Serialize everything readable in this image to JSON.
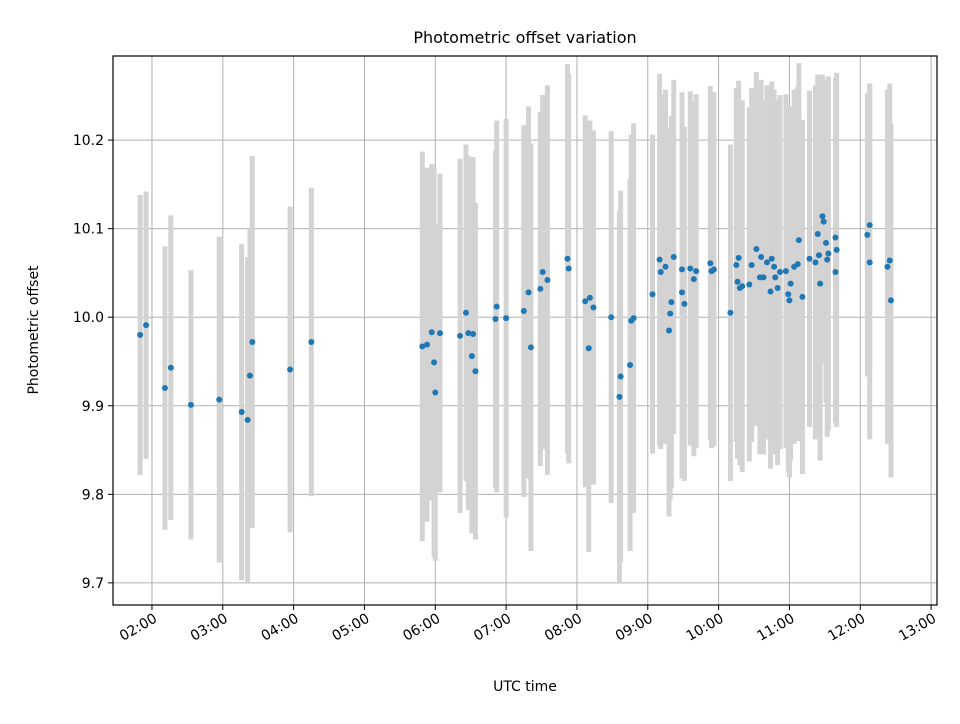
{
  "chart_data": {
    "type": "scatter",
    "title": "Photometric offset variation",
    "xlabel": "UTC time",
    "ylabel": "Photometric offset",
    "x_axis_kind": "time",
    "xlim": [
      "01:27",
      "13:05"
    ],
    "ylim": [
      9.675,
      10.295
    ],
    "grid": true,
    "x_ticks": [
      "02:00",
      "03:00",
      "04:00",
      "05:00",
      "06:00",
      "07:00",
      "08:00",
      "09:00",
      "10:00",
      "11:00",
      "12:00",
      "13:00"
    ],
    "y_ticks": [
      "9.7",
      "9.8",
      "9.9",
      "10.0",
      "10.1",
      "10.2"
    ],
    "colors": {
      "marker": "#1f77b4",
      "errorbar": "#d3d3d3",
      "grid": "#b0b0b0"
    },
    "series": [
      {
        "points": [
          {
            "x": "01:50",
            "y": 9.98,
            "err": 0.158
          },
          {
            "x": "01:55",
            "y": 9.991,
            "err": 0.151
          },
          {
            "x": "02:11",
            "y": 9.92,
            "err": 0.16
          },
          {
            "x": "02:16",
            "y": 9.943,
            "err": 0.172
          },
          {
            "x": "02:33",
            "y": 9.901,
            "err": 0.152
          },
          {
            "x": "02:57",
            "y": 9.907,
            "err": 0.184
          },
          {
            "x": "03:16",
            "y": 9.893,
            "err": 0.19
          },
          {
            "x": "03:21",
            "y": 9.884,
            "err": 0.184
          },
          {
            "x": "03:23",
            "y": 9.934,
            "err": 0.166
          },
          {
            "x": "03:25",
            "y": 9.972,
            "err": 0.21
          },
          {
            "x": "03:57",
            "y": 9.941,
            "err": 0.184
          },
          {
            "x": "04:15",
            "y": 9.972,
            "err": 0.174
          },
          {
            "x": "05:49",
            "y": 9.967,
            "err": 0.22
          },
          {
            "x": "05:53",
            "y": 9.969,
            "err": 0.2
          },
          {
            "x": "05:57",
            "y": 9.983,
            "err": 0.19
          },
          {
            "x": "05:59",
            "y": 9.949,
            "err": 0.22
          },
          {
            "x": "06:00",
            "y": 9.915,
            "err": 0.19
          },
          {
            "x": "06:04",
            "y": 9.982,
            "err": 0.18
          },
          {
            "x": "06:21",
            "y": 9.979,
            "err": 0.2
          },
          {
            "x": "06:26",
            "y": 10.005,
            "err": 0.19
          },
          {
            "x": "06:28",
            "y": 9.982,
            "err": 0.2
          },
          {
            "x": "06:32",
            "y": 9.981,
            "err": 0.2
          },
          {
            "x": "06:31",
            "y": 9.956,
            "err": 0.2
          },
          {
            "x": "06:34",
            "y": 9.939,
            "err": 0.19
          },
          {
            "x": "06:51",
            "y": 9.998,
            "err": 0.19
          },
          {
            "x": "06:52",
            "y": 10.012,
            "err": 0.21
          },
          {
            "x": "07:00",
            "y": 9.999,
            "err": 0.225
          },
          {
            "x": "07:15",
            "y": 10.007,
            "err": 0.21
          },
          {
            "x": "07:19",
            "y": 10.028,
            "err": 0.21
          },
          {
            "x": "07:21",
            "y": 9.966,
            "err": 0.23
          },
          {
            "x": "07:29",
            "y": 10.032,
            "err": 0.2
          },
          {
            "x": "07:31",
            "y": 10.051,
            "err": 0.2
          },
          {
            "x": "07:35",
            "y": 10.042,
            "err": 0.22
          },
          {
            "x": "07:52",
            "y": 10.066,
            "err": 0.22
          },
          {
            "x": "07:53",
            "y": 10.055,
            "err": 0.22
          },
          {
            "x": "08:07",
            "y": 10.018,
            "err": 0.21
          },
          {
            "x": "08:10",
            "y": 9.965,
            "err": 0.23
          },
          {
            "x": "08:11",
            "y": 10.022,
            "err": 0.2
          },
          {
            "x": "08:14",
            "y": 10.011,
            "err": 0.2
          },
          {
            "x": "08:29",
            "y": 10.0,
            "err": 0.21
          },
          {
            "x": "08:36",
            "y": 9.91,
            "err": 0.21
          },
          {
            "x": "08:37",
            "y": 9.933,
            "err": 0.21
          },
          {
            "x": "08:45",
            "y": 9.946,
            "err": 0.21
          },
          {
            "x": "08:46",
            "y": 9.996,
            "err": 0.21
          },
          {
            "x": "08:48",
            "y": 9.999,
            "err": 0.22
          },
          {
            "x": "09:04",
            "y": 10.026,
            "err": 0.18
          },
          {
            "x": "09:10",
            "y": 10.065,
            "err": 0.21
          },
          {
            "x": "09:11",
            "y": 10.051,
            "err": 0.2
          },
          {
            "x": "09:15",
            "y": 10.057,
            "err": 0.2
          },
          {
            "x": "09:18",
            "y": 9.985,
            "err": 0.21
          },
          {
            "x": "09:19",
            "y": 10.004,
            "err": 0.21
          },
          {
            "x": "09:20",
            "y": 10.017,
            "err": 0.21
          },
          {
            "x": "09:22",
            "y": 10.068,
            "err": 0.2
          },
          {
            "x": "09:29",
            "y": 10.054,
            "err": 0.2
          },
          {
            "x": "09:29",
            "y": 10.028,
            "err": 0.21
          },
          {
            "x": "09:31",
            "y": 10.015,
            "err": 0.2
          },
          {
            "x": "09:36",
            "y": 10.055,
            "err": 0.2
          },
          {
            "x": "09:39",
            "y": 10.043,
            "err": 0.2
          },
          {
            "x": "09:41",
            "y": 10.052,
            "err": 0.2
          },
          {
            "x": "09:53",
            "y": 10.061,
            "err": 0.2
          },
          {
            "x": "09:54",
            "y": 10.052,
            "err": 0.2
          },
          {
            "x": "09:56",
            "y": 10.054,
            "err": 0.2
          },
          {
            "x": "10:10",
            "y": 10.005,
            "err": 0.19
          },
          {
            "x": "10:15",
            "y": 10.059,
            "err": 0.2
          },
          {
            "x": "10:17",
            "y": 10.067,
            "err": 0.2
          },
          {
            "x": "10:16",
            "y": 10.04,
            "err": 0.2
          },
          {
            "x": "10:18",
            "y": 10.033,
            "err": 0.2
          },
          {
            "x": "10:20",
            "y": 10.035,
            "err": 0.21
          },
          {
            "x": "10:26",
            "y": 10.037,
            "err": 0.2
          },
          {
            "x": "10:28",
            "y": 10.059,
            "err": 0.2
          },
          {
            "x": "10:32",
            "y": 10.077,
            "err": 0.2
          },
          {
            "x": "10:35",
            "y": 10.045,
            "err": 0.2
          },
          {
            "x": "10:36",
            "y": 10.068,
            "err": 0.2
          },
          {
            "x": "10:38",
            "y": 10.045,
            "err": 0.2
          },
          {
            "x": "10:41",
            "y": 10.062,
            "err": 0.2
          },
          {
            "x": "10:44",
            "y": 10.029,
            "err": 0.2
          },
          {
            "x": "10:45",
            "y": 10.066,
            "err": 0.2
          },
          {
            "x": "10:47",
            "y": 10.057,
            "err": 0.2
          },
          {
            "x": "10:48",
            "y": 10.045,
            "err": 0.2
          },
          {
            "x": "10:50",
            "y": 10.033,
            "err": 0.2
          },
          {
            "x": "10:52",
            "y": 10.051,
            "err": 0.2
          },
          {
            "x": "10:57",
            "y": 10.052,
            "err": 0.2
          },
          {
            "x": "10:59",
            "y": 10.026,
            "err": 0.2
          },
          {
            "x": "11:00",
            "y": 10.019,
            "err": 0.2
          },
          {
            "x": "11:01",
            "y": 10.038,
            "err": 0.2
          },
          {
            "x": "11:04",
            "y": 10.057,
            "err": 0.2
          },
          {
            "x": "11:07",
            "y": 10.06,
            "err": 0.2
          },
          {
            "x": "11:08",
            "y": 10.087,
            "err": 0.2
          },
          {
            "x": "11:11",
            "y": 10.023,
            "err": 0.2
          },
          {
            "x": "11:17",
            "y": 10.066,
            "err": 0.19
          },
          {
            "x": "11:22",
            "y": 10.062,
            "err": 0.2
          },
          {
            "x": "11:24",
            "y": 10.094,
            "err": 0.18
          },
          {
            "x": "11:25",
            "y": 10.07,
            "err": 0.2
          },
          {
            "x": "11:26",
            "y": 10.038,
            "err": 0.2
          },
          {
            "x": "11:28",
            "y": 10.114,
            "err": 0.16
          },
          {
            "x": "11:29",
            "y": 10.108,
            "err": 0.16
          },
          {
            "x": "11:31",
            "y": 10.084,
            "err": 0.18
          },
          {
            "x": "11:32",
            "y": 10.065,
            "err": 0.2
          },
          {
            "x": "11:33",
            "y": 10.072,
            "err": 0.2
          },
          {
            "x": "11:39",
            "y": 10.051,
            "err": 0.17
          },
          {
            "x": "11:39",
            "y": 10.09,
            "err": 0.18
          },
          {
            "x": "11:40",
            "y": 10.076,
            "err": 0.2
          },
          {
            "x": "12:06",
            "y": 10.093,
            "err": 0.16
          },
          {
            "x": "12:08",
            "y": 10.104,
            "err": 0.16
          },
          {
            "x": "12:08",
            "y": 10.062,
            "err": 0.2
          },
          {
            "x": "12:23",
            "y": 10.057,
            "err": 0.2
          },
          {
            "x": "12:25",
            "y": 10.064,
            "err": 0.2
          },
          {
            "x": "12:26",
            "y": 10.019,
            "err": 0.2
          }
        ]
      }
    ]
  }
}
